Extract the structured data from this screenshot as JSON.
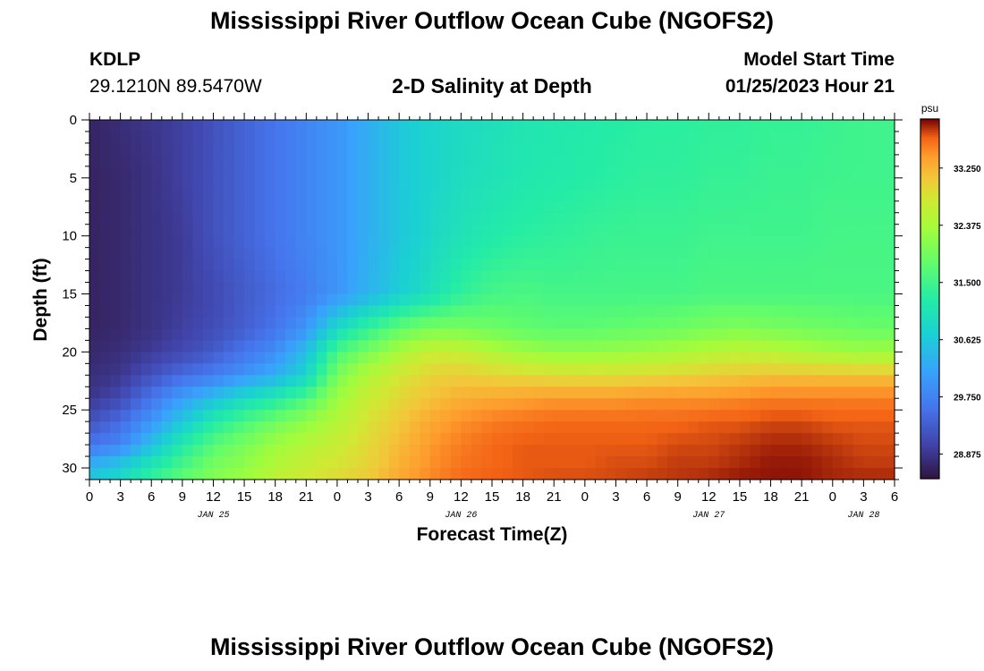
{
  "header": {
    "title": "Mississippi River Outflow Ocean Cube (NGOFS2)",
    "station_id": "KDLP",
    "station_coords": "29.1210N  89.5470W",
    "subtitle": "2-D Salinity at Depth",
    "model_start_label": "Model Start Time",
    "model_start_time": "01/25/2023 Hour 21",
    "footer_title": "Mississippi River Outflow Ocean Cube (NGOFS2)"
  },
  "chart_data": {
    "type": "heatmap",
    "title": "2-D Salinity at Depth",
    "xlabel": "Forecast Time(Z)",
    "ylabel": "Depth (ft)",
    "x_tick_labels": [
      "0",
      "3",
      "6",
      "9",
      "12",
      "15",
      "18",
      "21",
      "0",
      "3",
      "6",
      "9",
      "12",
      "15",
      "18",
      "21",
      "0",
      "3",
      "6",
      "9",
      "12",
      "15",
      "18",
      "21",
      "0",
      "3",
      "6"
    ],
    "x_date_labels": [
      {
        "label": "JAN 25",
        "at_hour": 12
      },
      {
        "label": "JAN 26",
        "at_hour": 36
      },
      {
        "label": "JAN 27",
        "at_hour": 60
      },
      {
        "label": "JAN 28",
        "at_hour": 75
      }
    ],
    "xlim_hours": [
      0,
      78
    ],
    "y_ticks": [
      0,
      5,
      10,
      15,
      20,
      25,
      30
    ],
    "ylim": [
      0,
      31
    ],
    "y_inverted": true,
    "colorbar": {
      "unit": "psu",
      "ticks": [
        "33.250",
        "32.375",
        "31.500",
        "30.625",
        "29.750",
        "28.875"
      ],
      "tick_values": [
        33.25,
        32.375,
        31.5,
        30.625,
        29.75,
        28.875
      ],
      "range": [
        28.5,
        34.0
      ],
      "colormap": "turbo"
    },
    "field": {
      "hours": [
        0,
        3,
        6,
        9,
        12,
        15,
        18,
        21,
        24,
        27,
        30,
        33,
        36,
        39,
        42,
        45,
        48,
        51,
        54,
        57,
        60,
        63,
        66,
        69,
        72,
        75,
        78
      ],
      "depths": [
        0,
        5,
        10,
        15,
        18,
        20,
        22,
        24,
        26,
        28,
        30,
        31
      ],
      "values": [
        [
          28.7,
          28.8,
          28.9,
          29.0,
          29.2,
          29.4,
          29.6,
          29.8,
          30.0,
          30.3,
          30.6,
          30.8,
          30.9,
          31.0,
          31.1,
          31.15,
          31.2,
          31.25,
          31.3,
          31.3,
          31.35,
          31.35,
          31.4,
          31.4,
          31.45,
          31.5,
          31.5
        ],
        [
          28.7,
          28.75,
          28.85,
          29.0,
          29.2,
          29.4,
          29.6,
          29.8,
          30.0,
          30.3,
          30.6,
          30.8,
          30.95,
          31.05,
          31.15,
          31.2,
          31.25,
          31.3,
          31.35,
          31.35,
          31.4,
          31.4,
          31.45,
          31.45,
          31.5,
          31.5,
          31.5
        ],
        [
          28.7,
          28.75,
          28.85,
          28.95,
          29.2,
          29.4,
          29.6,
          29.8,
          30.0,
          30.3,
          30.6,
          30.85,
          31.05,
          31.2,
          31.3,
          31.35,
          31.4,
          31.45,
          31.45,
          31.45,
          31.5,
          31.5,
          31.5,
          31.5,
          31.55,
          31.55,
          31.55
        ],
        [
          28.7,
          28.75,
          28.85,
          28.95,
          29.1,
          29.3,
          29.5,
          29.7,
          30.0,
          30.35,
          30.7,
          31.0,
          31.35,
          31.55,
          31.6,
          31.55,
          31.55,
          31.55,
          31.55,
          31.55,
          31.6,
          31.6,
          31.6,
          31.6,
          31.6,
          31.6,
          31.6
        ],
        [
          28.7,
          28.75,
          28.85,
          29.0,
          29.15,
          29.35,
          29.6,
          30.0,
          30.9,
          31.4,
          31.8,
          32.0,
          32.0,
          31.9,
          31.8,
          31.75,
          31.75,
          31.8,
          31.85,
          31.9,
          32.0,
          32.05,
          32.0,
          31.95,
          31.9,
          31.85,
          31.85
        ],
        [
          28.75,
          28.8,
          28.95,
          29.1,
          29.3,
          29.6,
          29.9,
          30.5,
          31.6,
          32.0,
          32.4,
          32.7,
          32.7,
          32.5,
          32.3,
          32.2,
          32.2,
          32.25,
          32.3,
          32.4,
          32.5,
          32.6,
          32.55,
          32.45,
          32.35,
          32.3,
          32.3
        ],
        [
          28.8,
          28.9,
          29.2,
          29.5,
          29.7,
          30.0,
          30.3,
          30.8,
          32.0,
          32.5,
          32.8,
          33.0,
          33.05,
          33.0,
          32.95,
          32.9,
          32.9,
          32.9,
          32.95,
          33.0,
          33.05,
          33.1,
          33.15,
          33.15,
          33.15,
          33.15,
          33.15
        ],
        [
          28.9,
          29.1,
          29.6,
          30.1,
          30.5,
          30.9,
          31.2,
          31.6,
          32.3,
          32.7,
          32.95,
          33.15,
          33.3,
          33.35,
          33.4,
          33.45,
          33.45,
          33.45,
          33.5,
          33.5,
          33.5,
          33.55,
          33.6,
          33.6,
          33.6,
          33.6,
          33.6
        ],
        [
          29.2,
          29.5,
          30.0,
          30.6,
          31.2,
          31.6,
          31.9,
          32.2,
          32.5,
          32.85,
          33.1,
          33.35,
          33.5,
          33.6,
          33.65,
          33.7,
          33.7,
          33.7,
          33.7,
          33.7,
          33.75,
          33.75,
          33.8,
          33.8,
          33.75,
          33.75,
          33.75
        ],
        [
          29.6,
          29.8,
          30.5,
          31.2,
          31.7,
          32.0,
          32.3,
          32.5,
          32.7,
          32.95,
          33.2,
          33.45,
          33.6,
          33.7,
          33.75,
          33.75,
          33.75,
          33.75,
          33.75,
          33.8,
          33.8,
          33.85,
          33.9,
          33.9,
          33.85,
          33.8,
          33.8
        ],
        [
          30.4,
          30.7,
          31.2,
          31.6,
          32.0,
          32.2,
          32.5,
          32.7,
          32.85,
          33.0,
          33.3,
          33.5,
          33.65,
          33.7,
          33.75,
          33.75,
          33.75,
          33.8,
          33.8,
          33.85,
          33.85,
          33.9,
          33.95,
          33.95,
          33.9,
          33.85,
          33.85
        ],
        [
          30.6,
          30.9,
          31.4,
          31.8,
          32.1,
          32.3,
          32.6,
          32.8,
          32.95,
          33.1,
          33.35,
          33.55,
          33.7,
          33.75,
          33.75,
          33.8,
          33.8,
          33.8,
          33.85,
          33.85,
          33.9,
          33.95,
          33.95,
          33.95,
          33.9,
          33.9,
          33.9
        ]
      ]
    }
  }
}
